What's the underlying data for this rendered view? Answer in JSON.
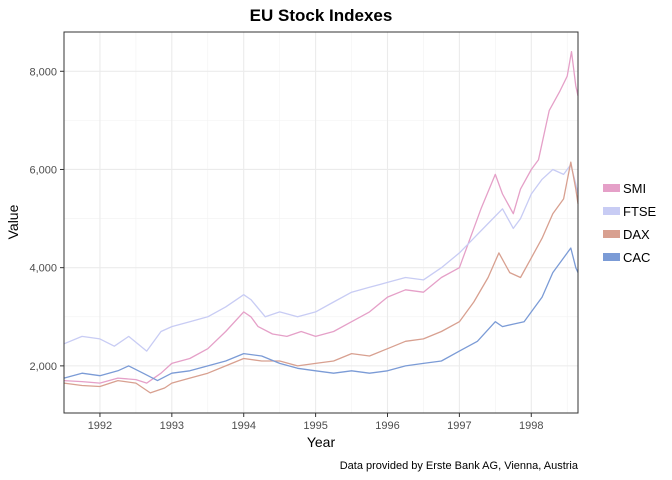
{
  "chart_data": {
    "type": "line",
    "title": "EU Stock Indexes",
    "xlabel": "Year",
    "ylabel": "Value",
    "caption": "Data provided by Erste Bank AG, Vienna, Austria",
    "xlim": [
      1991.5,
      1998.65
    ],
    "ylim": [
      1040,
      8800
    ],
    "x_ticks": [
      1992,
      1993,
      1994,
      1995,
      1996,
      1997,
      1998
    ],
    "x_tick_labels": [
      "1992",
      "1993",
      "1994",
      "1995",
      "1996",
      "1997",
      "1998"
    ],
    "y_ticks": [
      2000,
      4000,
      6000,
      8000
    ],
    "y_tick_labels": [
      "2,000",
      "4,000",
      "6,000",
      "8,000"
    ],
    "grid": true,
    "legend_position": "right",
    "series": [
      {
        "name": "SMI",
        "color": "#e5a0c8",
        "x": [
          1991.5,
          1991.75,
          1992.0,
          1992.25,
          1992.5,
          1992.65,
          1992.85,
          1993.0,
          1993.25,
          1993.5,
          1993.75,
          1994.0,
          1994.1,
          1994.2,
          1994.4,
          1994.6,
          1994.8,
          1995.0,
          1995.25,
          1995.5,
          1995.75,
          1996.0,
          1996.25,
          1996.5,
          1996.75,
          1997.0,
          1997.15,
          1997.3,
          1997.5,
          1997.6,
          1997.75,
          1997.85,
          1998.0,
          1998.1,
          1998.25,
          1998.4,
          1998.5,
          1998.56,
          1998.62,
          1998.65
        ],
        "y": [
          1700,
          1680,
          1650,
          1750,
          1720,
          1650,
          1850,
          2050,
          2150,
          2350,
          2700,
          3100,
          3000,
          2800,
          2650,
          2600,
          2700,
          2600,
          2700,
          2900,
          3100,
          3400,
          3550,
          3500,
          3800,
          4000,
          4600,
          5200,
          5900,
          5500,
          5100,
          5600,
          6000,
          6200,
          7200,
          7600,
          7900,
          8400,
          7700,
          7500
        ]
      },
      {
        "name": "FTSE",
        "color": "#c8ccf4",
        "x": [
          1991.5,
          1991.75,
          1992.0,
          1992.2,
          1992.4,
          1992.65,
          1992.85,
          1993.0,
          1993.25,
          1993.5,
          1993.75,
          1994.0,
          1994.1,
          1994.3,
          1994.5,
          1994.75,
          1995.0,
          1995.25,
          1995.5,
          1995.75,
          1996.0,
          1996.25,
          1996.5,
          1996.75,
          1997.0,
          1997.2,
          1997.4,
          1997.6,
          1997.75,
          1997.85,
          1998.0,
          1998.15,
          1998.3,
          1998.45,
          1998.55,
          1998.62,
          1998.65
        ],
        "y": [
          2450,
          2600,
          2550,
          2400,
          2600,
          2300,
          2700,
          2800,
          2900,
          3000,
          3200,
          3450,
          3350,
          3000,
          3100,
          3000,
          3100,
          3300,
          3500,
          3600,
          3700,
          3800,
          3750,
          4000,
          4300,
          4600,
          4900,
          5200,
          4800,
          5000,
          5500,
          5800,
          6000,
          5900,
          6100,
          5700,
          5500
        ]
      },
      {
        "name": "DAX",
        "color": "#d8a090",
        "x": [
          1991.5,
          1991.75,
          1992.0,
          1992.25,
          1992.5,
          1992.7,
          1992.9,
          1993.0,
          1993.25,
          1993.5,
          1993.75,
          1994.0,
          1994.25,
          1994.5,
          1994.75,
          1995.0,
          1995.25,
          1995.5,
          1995.75,
          1996.0,
          1996.25,
          1996.5,
          1996.75,
          1997.0,
          1997.2,
          1997.4,
          1997.55,
          1997.7,
          1997.85,
          1998.0,
          1998.15,
          1998.3,
          1998.45,
          1998.55,
          1998.62,
          1998.65
        ],
        "y": [
          1650,
          1600,
          1580,
          1700,
          1650,
          1450,
          1550,
          1650,
          1750,
          1850,
          2000,
          2150,
          2100,
          2100,
          2000,
          2050,
          2100,
          2250,
          2200,
          2350,
          2500,
          2550,
          2700,
          2900,
          3300,
          3800,
          4300,
          3900,
          3800,
          4200,
          4600,
          5100,
          5400,
          6150,
          5600,
          5300
        ]
      },
      {
        "name": "CAC",
        "color": "#7b9bd6",
        "x": [
          1991.5,
          1991.75,
          1992.0,
          1992.25,
          1992.4,
          1992.6,
          1992.8,
          1993.0,
          1993.25,
          1993.5,
          1993.75,
          1994.0,
          1994.25,
          1994.5,
          1994.75,
          1995.0,
          1995.25,
          1995.5,
          1995.75,
          1996.0,
          1996.25,
          1996.5,
          1996.75,
          1997.0,
          1997.25,
          1997.5,
          1997.6,
          1997.75,
          1997.9,
          1998.0,
          1998.15,
          1998.3,
          1998.45,
          1998.55,
          1998.62,
          1998.65
        ],
        "y": [
          1750,
          1850,
          1800,
          1900,
          2000,
          1850,
          1700,
          1850,
          1900,
          2000,
          2100,
          2250,
          2200,
          2050,
          1950,
          1900,
          1850,
          1900,
          1850,
          1900,
          2000,
          2050,
          2100,
          2300,
          2500,
          2900,
          2800,
          2850,
          2900,
          3100,
          3400,
          3900,
          4200,
          4400,
          4000,
          3900
        ]
      }
    ]
  }
}
